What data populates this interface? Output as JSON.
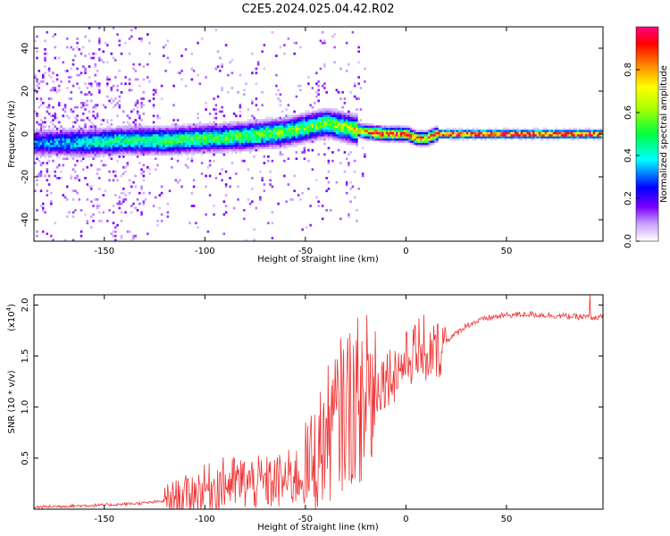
{
  "chart_data": [
    {
      "type": "heatmap",
      "title": "C2E5.2024.025.04.42.R02",
      "xlabel": "Height of straight line (km)",
      "ylabel": "Frequency (Hz)",
      "xlim": [
        -185,
        98
      ],
      "ylim": [
        -50,
        50
      ],
      "x_ticks": [
        -150,
        -100,
        -50,
        0,
        50
      ],
      "y_ticks": [
        -40,
        -20,
        0,
        20,
        40
      ],
      "colorbar": {
        "label": "Normalized spectral amplitude",
        "range": [
          0,
          1
        ],
        "ticks": [
          "0.0",
          "0.2",
          "0.4",
          "0.6",
          "0.8"
        ],
        "tick_values": [
          0.0,
          0.2,
          0.4,
          0.6,
          0.8
        ]
      },
      "ridge": {
        "x": [
          -185,
          -160,
          -140,
          -120,
          -100,
          -80,
          -60,
          -50,
          -40,
          -35,
          -30,
          -25,
          -20,
          -10,
          0,
          5,
          10,
          15,
          20,
          50,
          98
        ],
        "center_freq": [
          -4,
          -4,
          -3,
          -3,
          -2,
          -1,
          1,
          3,
          5,
          4,
          3,
          2,
          1,
          0,
          0,
          -2,
          -2,
          0,
          0,
          0,
          0
        ],
        "peak_amplitude": [
          0.3,
          0.4,
          0.45,
          0.5,
          0.5,
          0.52,
          0.55,
          0.55,
          0.55,
          0.6,
          0.6,
          0.7,
          0.85,
          0.9,
          0.9,
          0.8,
          0.8,
          0.9,
          0.95,
          0.95,
          0.95
        ]
      }
    },
    {
      "type": "line",
      "xlabel": "Height of straight line (km)",
      "ylabel": "SNR (10 * v/v)",
      "y_multiplier": "(x10⁴)",
      "y_multiplier_base": "(x10",
      "y_multiplier_exp": "4",
      "y_multiplier_close": ")",
      "xlim": [
        -185,
        98
      ],
      "ylim": [
        0,
        2.1
      ],
      "x_ticks": [
        -150,
        -100,
        -50,
        0,
        50
      ],
      "y_ticks": [
        0.5,
        1.0,
        1.5,
        2.0
      ],
      "y_tick_labels": [
        "0.5",
        "1.0",
        "1.5",
        "2.0"
      ],
      "series": [
        {
          "name": "SNR",
          "color": "#ee3333",
          "x": [
            -185,
            -170,
            -150,
            -140,
            -130,
            -120,
            -110,
            -100,
            -90,
            -80,
            -70,
            -60,
            -50,
            -45,
            -40,
            -35,
            -30,
            -25,
            -22,
            -20,
            -15,
            -10,
            -5,
            0,
            5,
            8,
            10,
            12,
            15,
            20,
            25,
            30,
            40,
            50,
            60,
            70,
            80,
            90,
            98
          ],
          "values": [
            0.02,
            0.03,
            0.04,
            0.05,
            0.06,
            0.08,
            0.13,
            0.2,
            0.25,
            0.26,
            0.25,
            0.28,
            0.35,
            0.5,
            0.7,
            0.85,
            1.0,
            1.05,
            1.1,
            1.1,
            1.2,
            1.3,
            1.35,
            1.45,
            1.55,
            1.6,
            1.25,
            1.55,
            1.55,
            1.65,
            1.72,
            1.8,
            1.87,
            1.9,
            1.91,
            1.9,
            1.89,
            1.88,
            1.88
          ]
        }
      ]
    }
  ]
}
